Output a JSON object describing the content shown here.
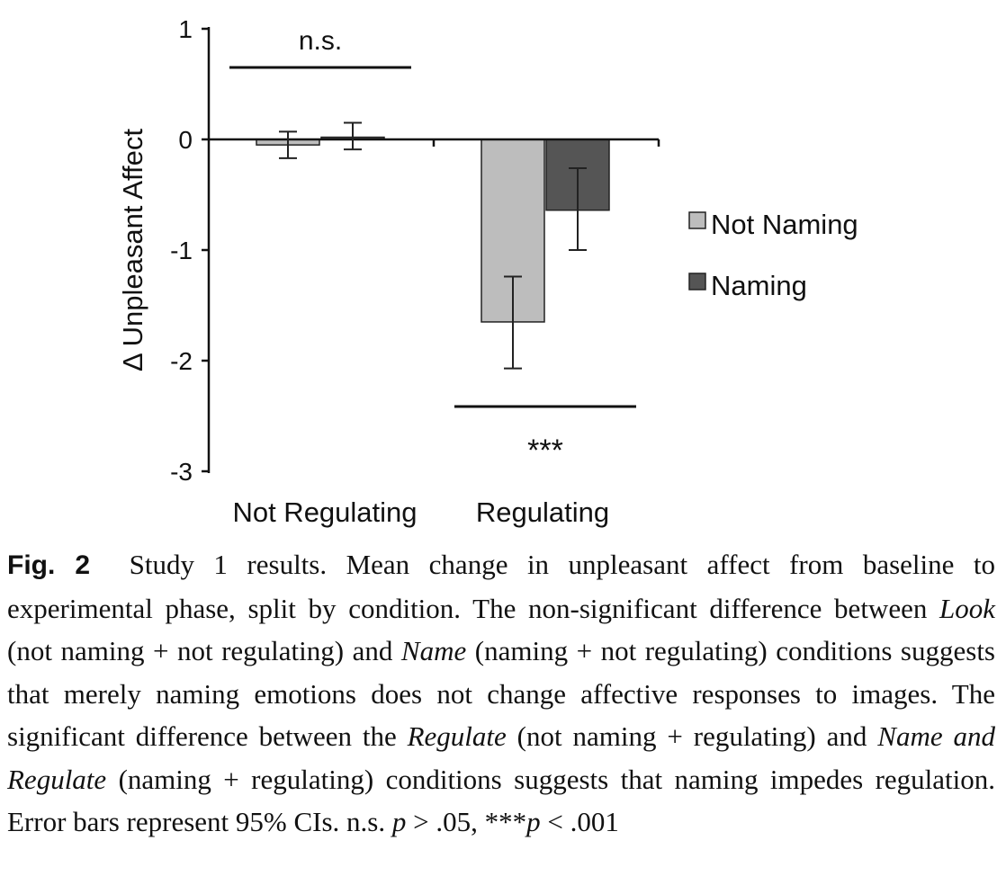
{
  "chart_data": {
    "type": "bar",
    "categories": [
      "Not Regulating",
      "Regulating"
    ],
    "series": [
      {
        "name": "Not Naming",
        "values": [
          -0.05,
          -1.65
        ],
        "ci_low": [
          -0.17,
          -2.07
        ],
        "ci_high": [
          0.07,
          -1.24
        ],
        "color": "#bdbdbd"
      },
      {
        "name": "Naming",
        "values": [
          0.02,
          -0.64
        ],
        "ci_low": [
          -0.09,
          -1.0
        ],
        "ci_high": [
          0.15,
          -0.26
        ],
        "color": "#555555"
      }
    ],
    "ylabel": "Δ Unpleasant Affect",
    "ylim": [
      -3,
      1
    ],
    "yticks": [
      1,
      0,
      -1,
      -2,
      -3
    ],
    "legend_position": "right",
    "grid": false,
    "annotations": [
      {
        "category": "Not Regulating",
        "text": "n.s.",
        "placement": "above"
      },
      {
        "category": "Regulating",
        "text": "***",
        "placement": "below"
      }
    ]
  },
  "caption": {
    "label": "Fig. 2",
    "p1": " Study 1 results. Mean change in unpleasant affect from baseline to experimental phase, split by condition. The non-significant difference between ",
    "look": "Look",
    "p2": " (not naming + not regulating) and ",
    "name": "Name",
    "p3": " (naming + not regulating) conditions suggests that merely naming emotions does not change affective responses to images. The significant difference between the ",
    "regulate": "Regulate",
    "p4": " (not naming + regulating) and ",
    "name_regulate": "Name and Regulate",
    "p5": " (naming + regulating) conditions suggests that naming impedes regulation. Error bars represent 95% CIs. n.s. ",
    "p_var1": "p",
    "p6": " > .05, ***",
    "p_var2": "p",
    "p7": " < .001"
  }
}
